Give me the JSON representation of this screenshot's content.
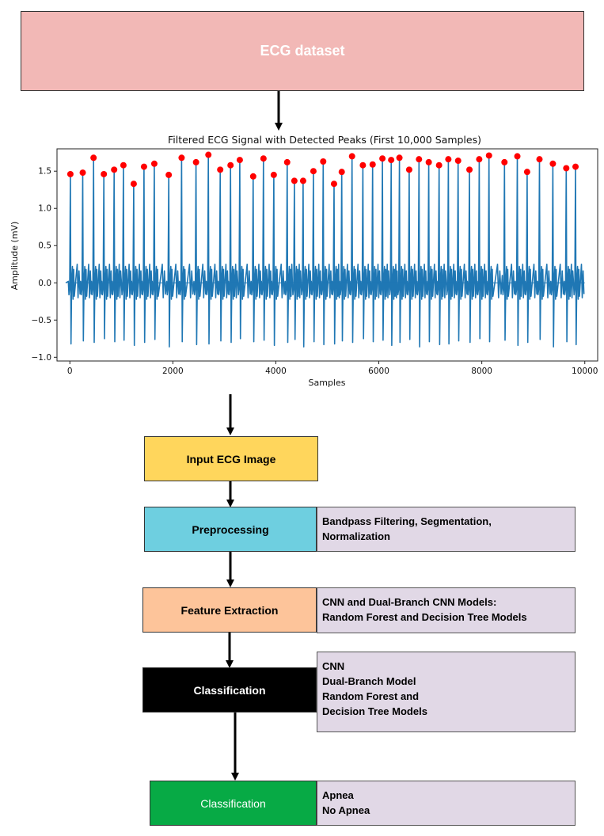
{
  "flow": {
    "dataset": "ECG dataset",
    "input": "Input ECG Image",
    "preprocessing": "Preprocessing",
    "preprocessing_note": "Bandpass Filtering, Segmentation,\nNormalization",
    "feature_extraction": "Feature Extraction",
    "feature_note": "CNN and Dual-Branch CNN Models:\nRandom Forest and Decision Tree Models",
    "classification": "Classification",
    "classification_note": "CNN\nDual-Branch Model\nRandom Forest and\nDecision Tree Models",
    "output": "Classification",
    "output_note": "Apnea\nNo Apnea"
  },
  "colors": {
    "dataset": "#f2b8b6",
    "input": "#ffd65c",
    "preprocessing": "#6ecfe0",
    "feature_extraction": "#fdc49a",
    "classification": "#000000",
    "output": "#07aa45",
    "note": "#e1d8e6",
    "signal": "#1f77b4",
    "peaks": "#ff0000"
  },
  "chart_data": {
    "type": "line",
    "title": "Filtered ECG Signal with Detected Peaks (First 10,000 Samples)",
    "xlabel": "Samples",
    "ylabel": "Amplitude (mV)",
    "xlim": [
      -250,
      10250
    ],
    "ylim": [
      -1.05,
      1.8
    ],
    "xticks": [
      0,
      2000,
      4000,
      6000,
      8000,
      10000
    ],
    "yticks": [
      -1.0,
      -0.5,
      0.0,
      0.5,
      1.0,
      1.5
    ],
    "grid": false,
    "series": [
      {
        "values": "ECG waveform, baseline 0 mV, R-peaks ~1.3–1.7 mV, troughs ~-0.75 to -0.9 mV"
      }
    ],
    "peaks": {
      "x": [
        10,
        250,
        460,
        660,
        860,
        1040,
        1240,
        1440,
        1640,
        1920,
        2170,
        2450,
        2690,
        2920,
        3120,
        3300,
        3560,
        3760,
        3960,
        4220,
        4360,
        4530,
        4730,
        4920,
        5130,
        5280,
        5480,
        5690,
        5880,
        6070,
        6240,
        6400,
        6590,
        6780,
        6970,
        7170,
        7350,
        7540,
        7760,
        7950,
        8140,
        8440,
        8690,
        8880,
        9120,
        9380,
        9640,
        9820
      ],
      "y": [
        1.46,
        1.48,
        1.68,
        1.46,
        1.52,
        1.58,
        1.33,
        1.56,
        1.6,
        1.45,
        1.68,
        1.62,
        1.72,
        1.52,
        1.58,
        1.65,
        1.43,
        1.67,
        1.45,
        1.62,
        1.37,
        1.37,
        1.5,
        1.63,
        1.33,
        1.49,
        1.7,
        1.58,
        1.59,
        1.67,
        1.65,
        1.68,
        1.52,
        1.66,
        1.62,
        1.58,
        1.66,
        1.64,
        1.52,
        1.66,
        1.71,
        1.62,
        1.7,
        1.49,
        1.66,
        1.6,
        1.54,
        1.56
      ]
    }
  }
}
